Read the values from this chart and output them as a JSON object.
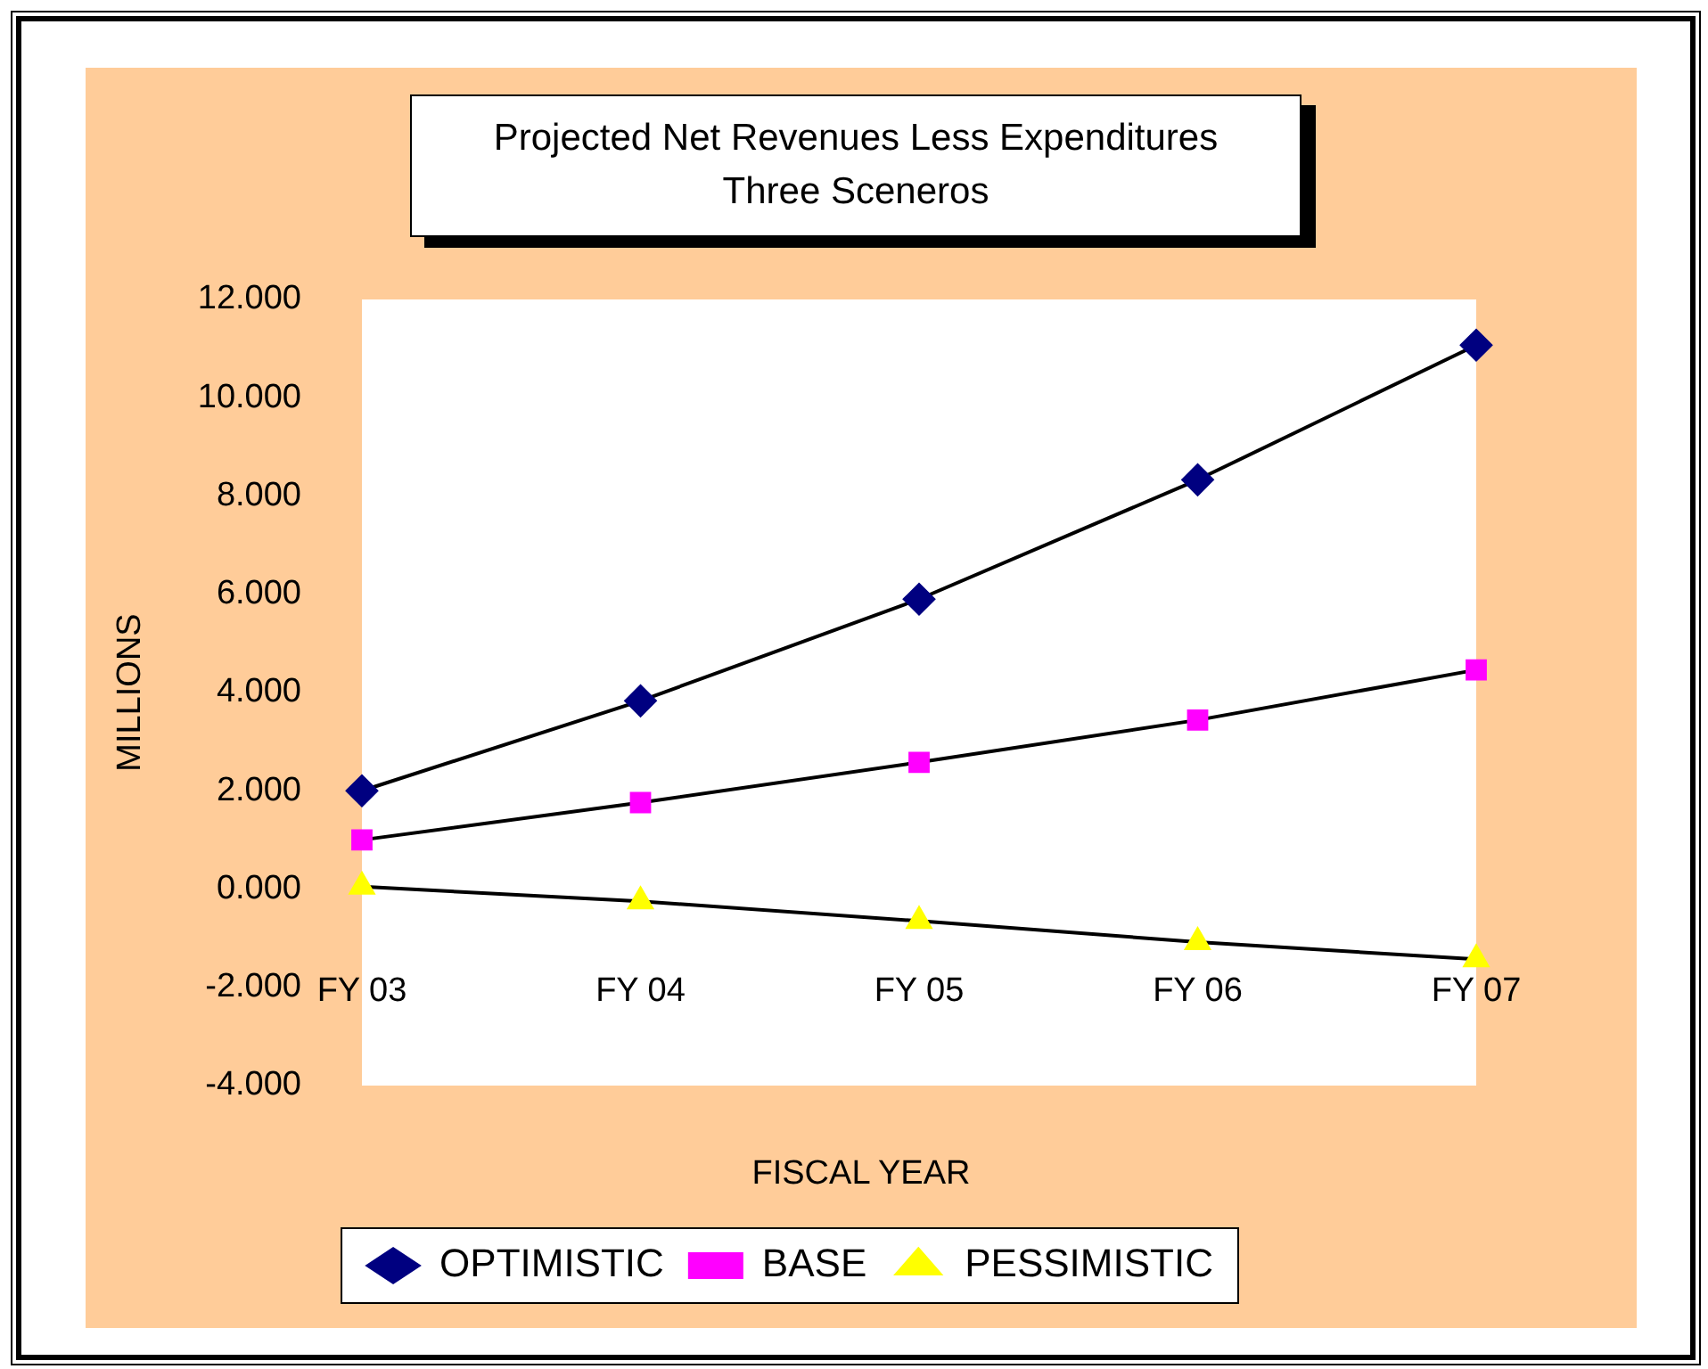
{
  "chart_data": {
    "type": "line",
    "title": "Projected Net Revenues Less Expenditures\nThree Sceneros",
    "xlabel": "FISCAL YEAR",
    "ylabel": "MILLIONS",
    "categories": [
      "FY 03",
      "FY 04",
      "FY 05",
      "FY 06",
      "FY 07"
    ],
    "series": [
      {
        "name": "OPTIMISTIC",
        "color": "#000080",
        "marker": "diamond",
        "values": [
          2.0,
          3.83,
          5.9,
          8.33,
          11.07
        ]
      },
      {
        "name": "BASE",
        "color": "#ff00ff",
        "marker": "square",
        "values": [
          1.0,
          1.76,
          2.58,
          3.44,
          4.46
        ]
      },
      {
        "name": "PESSIMISTIC",
        "color": "#ffff00",
        "marker": "triangle",
        "values": [
          0.05,
          -0.25,
          -0.65,
          -1.08,
          -1.43
        ]
      }
    ],
    "ylim": [
      -4,
      12
    ],
    "yticks": [
      {
        "value": -4,
        "label": "-4.000"
      },
      {
        "value": -2,
        "label": "-2.000"
      },
      {
        "value": 0,
        "label": "0.000"
      },
      {
        "value": 2,
        "label": "2.000"
      },
      {
        "value": 4,
        "label": "4.000"
      },
      {
        "value": 6,
        "label": "6.000"
      },
      {
        "value": 8,
        "label": "8.000"
      },
      {
        "value": 10,
        "label": "10.000"
      },
      {
        "value": 12,
        "label": "12.000"
      }
    ],
    "grid": false,
    "legend": "bottom",
    "line_style": "solid"
  }
}
